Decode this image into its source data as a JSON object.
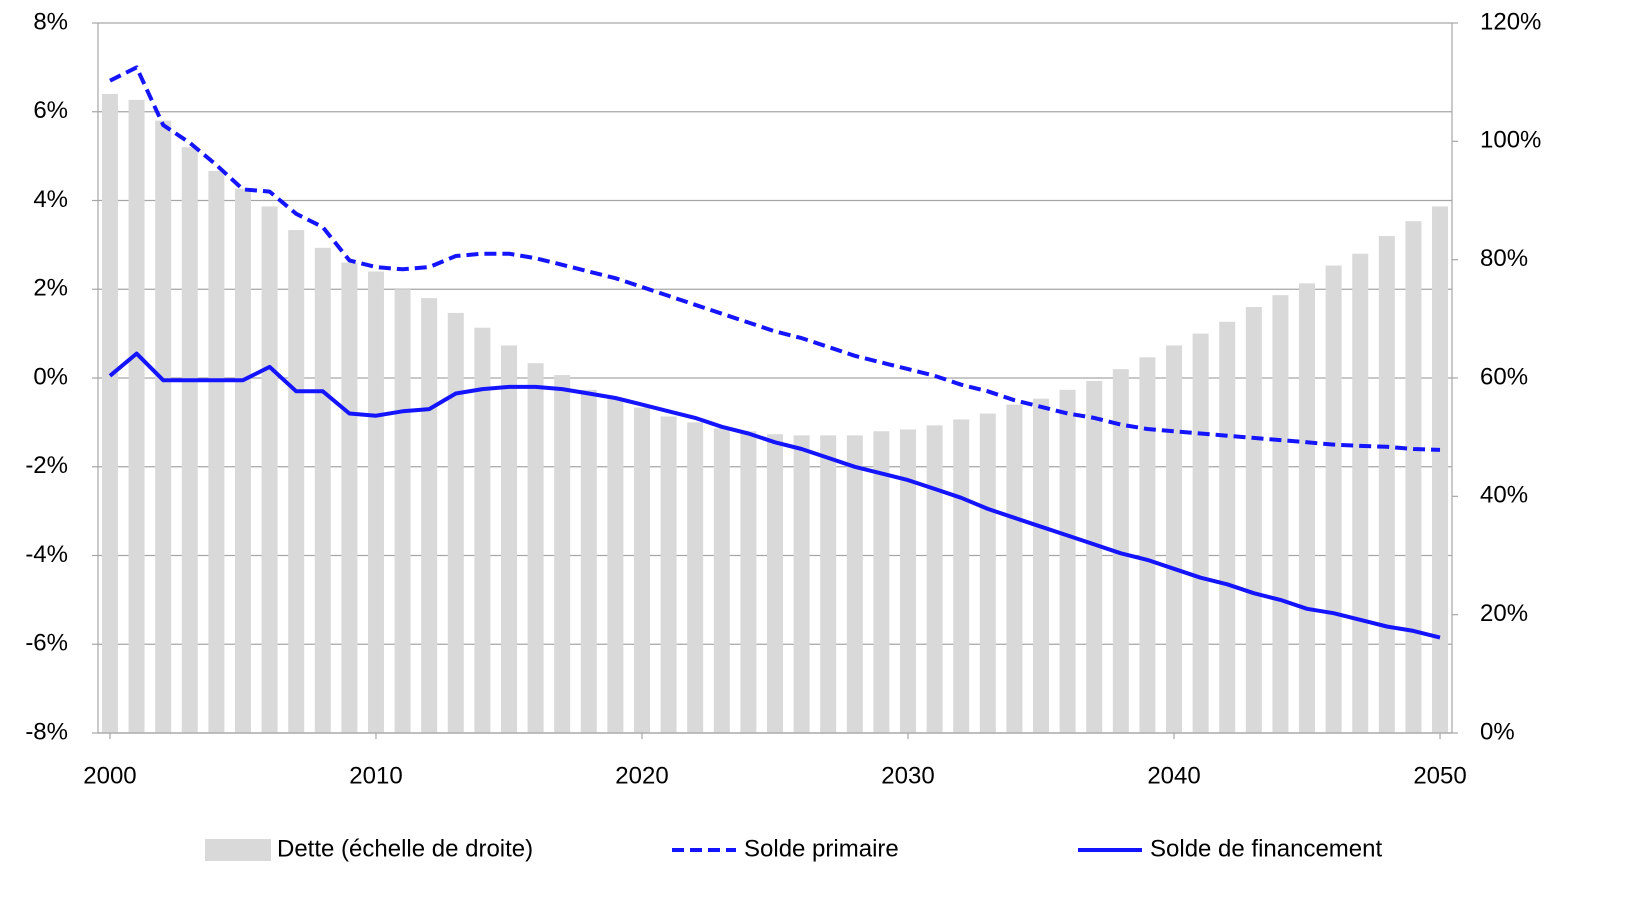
{
  "chart_data": {
    "type": "combo",
    "x": [
      2000,
      2001,
      2002,
      2003,
      2004,
      2005,
      2006,
      2007,
      2008,
      2009,
      2010,
      2011,
      2012,
      2013,
      2014,
      2015,
      2016,
      2017,
      2018,
      2019,
      2020,
      2021,
      2022,
      2023,
      2024,
      2025,
      2026,
      2027,
      2028,
      2029,
      2030,
      2031,
      2032,
      2033,
      2034,
      2035,
      2036,
      2037,
      2038,
      2039,
      2040,
      2041,
      2042,
      2043,
      2044,
      2045,
      2046,
      2047,
      2048,
      2049,
      2050
    ],
    "xlim": [
      1999.55,
      2050.45
    ],
    "xticks": [
      2000,
      2010,
      2020,
      2030,
      2040,
      2050
    ],
    "ylim": [
      -8,
      8
    ],
    "yticks": [
      {
        "value": 8,
        "label": "8%"
      },
      {
        "value": 6,
        "label": "6%"
      },
      {
        "value": 4,
        "label": "4%"
      },
      {
        "value": 2,
        "label": "2%"
      },
      {
        "value": 0,
        "label": "0%"
      },
      {
        "value": -2,
        "label": "-2%"
      },
      {
        "value": -4,
        "label": "-4%"
      },
      {
        "value": -6,
        "label": "-6%"
      },
      {
        "value": -8,
        "label": "-8%"
      }
    ],
    "y2lim": [
      0,
      120
    ],
    "y2ticks": [
      {
        "value": 120,
        "label": "120%"
      },
      {
        "value": 100,
        "label": "100%"
      },
      {
        "value": 80,
        "label": "80%"
      },
      {
        "value": 60,
        "label": "60%"
      },
      {
        "value": 40,
        "label": "40%"
      },
      {
        "value": 20,
        "label": "20%"
      },
      {
        "value": 0,
        "label": "0%"
      }
    ],
    "grid": true,
    "legend": "bottom",
    "series": [
      {
        "name": "Dette (échelle de droite)",
        "type": "bar",
        "axis": "y2",
        "color": "#d9d9d9",
        "values": [
          108,
          107,
          103.5,
          99,
          95,
          92,
          89,
          85,
          82,
          79.5,
          78,
          75,
          73.5,
          71,
          68.5,
          65.5,
          62.5,
          60.5,
          58,
          56.5,
          55,
          53.5,
          52.5,
          51.5,
          51,
          50.5,
          50.3,
          50.3,
          50.3,
          51,
          51.3,
          52,
          53,
          54,
          55.5,
          56.5,
          58,
          59.5,
          61.5,
          63.5,
          65.5,
          67.5,
          69.5,
          72,
          74,
          76,
          79,
          81,
          84,
          86.5,
          89
        ]
      },
      {
        "name": "Solde primaire",
        "type": "line",
        "line_style": "dashed",
        "color": "#1414ff",
        "values": [
          6.7,
          7.0,
          5.7,
          5.3,
          4.8,
          4.25,
          4.2,
          3.7,
          3.4,
          2.65,
          2.5,
          2.45,
          2.5,
          2.75,
          2.8,
          2.8,
          2.7,
          2.55,
          2.4,
          2.25,
          2.05,
          1.85,
          1.65,
          1.45,
          1.25,
          1.05,
          0.9,
          0.7,
          0.5,
          0.35,
          0.2,
          0.05,
          -0.15,
          -0.3,
          -0.5,
          -0.65,
          -0.8,
          -0.9,
          -1.05,
          -1.15,
          -1.2,
          -1.25,
          -1.3,
          -1.35,
          -1.4,
          -1.45,
          -1.5,
          -1.53,
          -1.55,
          -1.6,
          -1.62
        ]
      },
      {
        "name": "Solde de financement",
        "type": "line",
        "line_style": "solid",
        "color": "#1414ff",
        "values": [
          0.05,
          0.55,
          -0.05,
          -0.05,
          -0.05,
          -0.05,
          0.25,
          -0.3,
          -0.3,
          -0.8,
          -0.85,
          -0.75,
          -0.7,
          -0.35,
          -0.25,
          -0.2,
          -0.2,
          -0.25,
          -0.35,
          -0.45,
          -0.6,
          -0.75,
          -0.9,
          -1.1,
          -1.25,
          -1.45,
          -1.6,
          -1.8,
          -2.0,
          -2.15,
          -2.3,
          -2.5,
          -2.7,
          -2.95,
          -3.15,
          -3.35,
          -3.55,
          -3.75,
          -3.95,
          -4.1,
          -4.3,
          -4.5,
          -4.65,
          -4.85,
          -5.0,
          -5.2,
          -5.3,
          -5.45,
          -5.6,
          -5.7,
          -5.85
        ]
      }
    ]
  }
}
